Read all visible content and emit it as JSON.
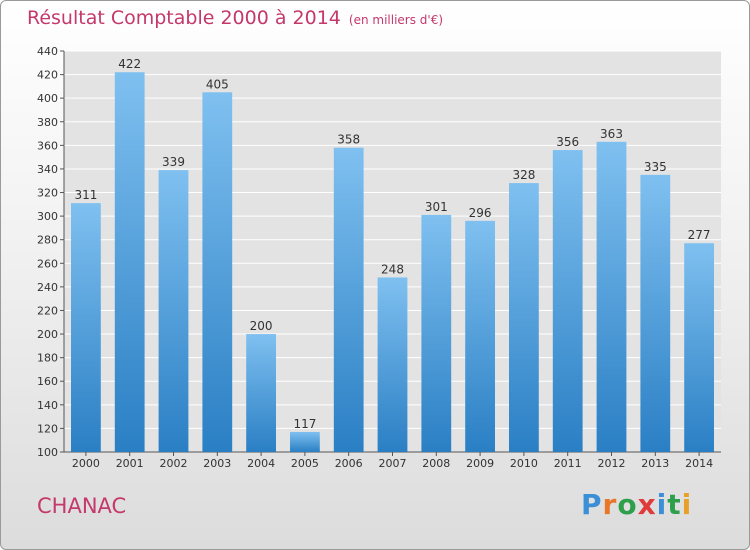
{
  "header": {
    "title": "Résultat Comptable 2000 à 2014",
    "subtitle": "(en milliers d'€)"
  },
  "footer": {
    "commune": "CHANAC",
    "brand_letters": [
      "P",
      "r",
      "o",
      "x",
      "i",
      "t",
      "i"
    ],
    "brand_colors": [
      "#3a8fd6",
      "#e8772a",
      "#2e9f4a",
      "#e03a3a",
      "#3a8fd6",
      "#2e9f4a",
      "#e8a02a"
    ]
  },
  "colors": {
    "bar_light": "#7fc0f0",
    "bar_dark": "#2a7fc4",
    "grid": "#ffffff",
    "plot_bg": "#e3e3e3",
    "text": "#333333"
  },
  "chart_data": {
    "type": "bar",
    "categories": [
      "2000",
      "2001",
      "2002",
      "2003",
      "2004",
      "2005",
      "2006",
      "2007",
      "2008",
      "2009",
      "2010",
      "2011",
      "2012",
      "2013",
      "2014"
    ],
    "values": [
      311,
      422,
      339,
      405,
      200,
      117,
      358,
      248,
      301,
      296,
      328,
      356,
      363,
      335,
      277
    ],
    "ylim": [
      100,
      440
    ],
    "yticks": [
      100,
      120,
      140,
      160,
      180,
      200,
      220,
      240,
      260,
      280,
      300,
      320,
      340,
      360,
      380,
      400,
      420,
      440
    ],
    "grid": true,
    "xlabel": "",
    "ylabel": ""
  }
}
